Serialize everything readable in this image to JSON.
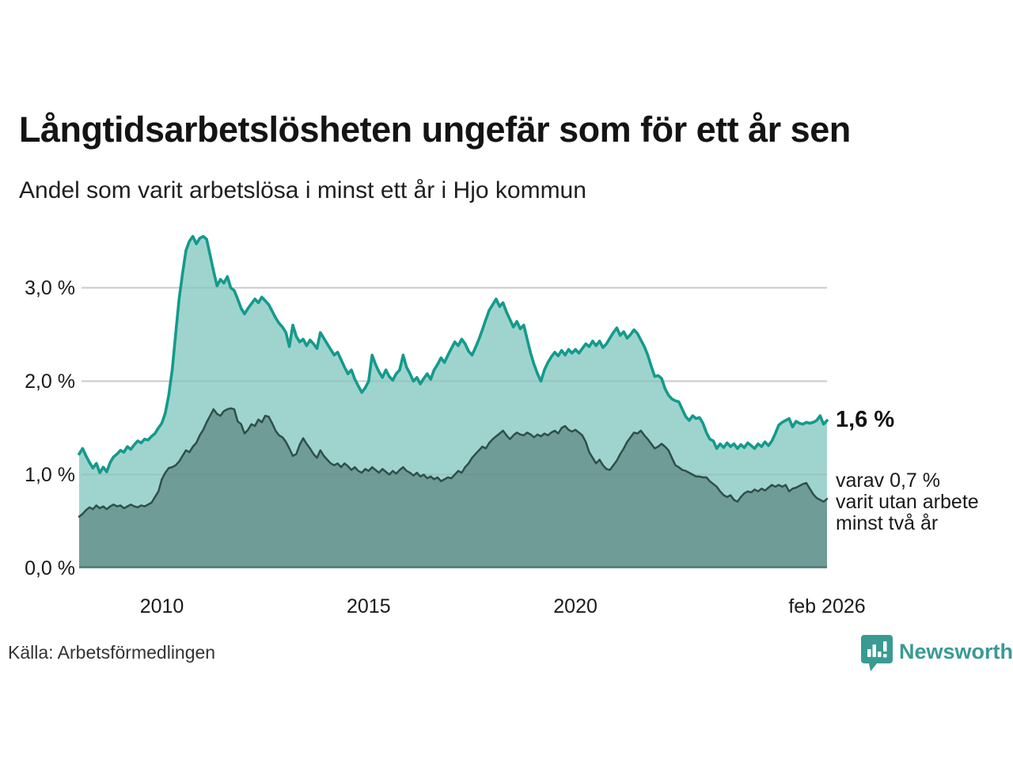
{
  "header": {
    "title": "Långtidsarbetslösheten ungefär som för ett år sen",
    "subtitle": "Andel som varit arbetslösa i minst ett år i Hjo kommun"
  },
  "chart_data": {
    "type": "area",
    "title": "Långtidsarbetslösheten ungefär som för ett år sen",
    "subtitle": "Andel som varit arbetslösa i minst ett år i Hjo kommun",
    "unit": "%",
    "x_start": "2008-01",
    "x_end": "2026-02",
    "x_ticks": [
      {
        "label": "2010",
        "month_index": 24
      },
      {
        "label": "2015",
        "month_index": 84
      },
      {
        "label": "2020",
        "month_index": 144
      },
      {
        "label": "feb 2026",
        "month_index": 217
      }
    ],
    "y_ticks": [
      {
        "label": "0,0 %",
        "value": 0
      },
      {
        "label": "1,0 %",
        "value": 1
      },
      {
        "label": "2,0 %",
        "value": 2
      },
      {
        "label": "3,0 %",
        "value": 3
      }
    ],
    "ylim": [
      0,
      3.6
    ],
    "grid": "horizontal",
    "legend_position": "none",
    "colors": {
      "line_one_year": "#149a8c",
      "fill_one_year": "#9fd4ce",
      "line_two_years": "#2f4f4a",
      "fill_two_years": "#6f9c97",
      "gridline": "#dcdcdc",
      "axis_line": "#4f7672"
    },
    "series": [
      {
        "name": "Andel arbetslösa minst ett år",
        "latest_label": "1,6 %",
        "values": [
          1.22,
          1.28,
          1.2,
          1.13,
          1.07,
          1.12,
          1.02,
          1.08,
          1.03,
          1.13,
          1.19,
          1.22,
          1.26,
          1.24,
          1.3,
          1.27,
          1.32,
          1.36,
          1.34,
          1.38,
          1.37,
          1.41,
          1.44,
          1.5,
          1.55,
          1.66,
          1.85,
          2.12,
          2.5,
          2.88,
          3.15,
          3.4,
          3.5,
          3.55,
          3.47,
          3.53,
          3.55,
          3.52,
          3.35,
          3.18,
          3.02,
          3.09,
          3.05,
          3.12,
          3.0,
          2.97,
          2.88,
          2.78,
          2.72,
          2.78,
          2.83,
          2.88,
          2.84,
          2.9,
          2.86,
          2.82,
          2.75,
          2.68,
          2.62,
          2.58,
          2.52,
          2.37,
          2.6,
          2.48,
          2.42,
          2.45,
          2.38,
          2.44,
          2.4,
          2.35,
          2.52,
          2.46,
          2.4,
          2.34,
          2.28,
          2.31,
          2.23,
          2.15,
          2.08,
          2.12,
          2.02,
          1.95,
          1.88,
          1.93,
          2.0,
          2.28,
          2.18,
          2.1,
          2.04,
          2.12,
          2.05,
          2.01,
          2.08,
          2.12,
          2.28,
          2.15,
          2.08,
          2.0,
          2.04,
          1.97,
          2.03,
          2.08,
          2.02,
          2.12,
          2.18,
          2.25,
          2.2,
          2.28,
          2.35,
          2.42,
          2.38,
          2.45,
          2.4,
          2.32,
          2.28,
          2.36,
          2.45,
          2.55,
          2.66,
          2.76,
          2.82,
          2.88,
          2.8,
          2.84,
          2.74,
          2.66,
          2.58,
          2.64,
          2.56,
          2.6,
          2.45,
          2.3,
          2.18,
          2.08,
          2.0,
          2.12,
          2.2,
          2.26,
          2.31,
          2.27,
          2.33,
          2.28,
          2.34,
          2.3,
          2.34,
          2.3,
          2.35,
          2.4,
          2.37,
          2.43,
          2.38,
          2.43,
          2.36,
          2.4,
          2.46,
          2.52,
          2.57,
          2.49,
          2.53,
          2.46,
          2.5,
          2.55,
          2.51,
          2.44,
          2.37,
          2.28,
          2.16,
          2.05,
          2.06,
          2.03,
          1.92,
          1.85,
          1.81,
          1.79,
          1.78,
          1.7,
          1.62,
          1.58,
          1.63,
          1.6,
          1.61,
          1.55,
          1.45,
          1.38,
          1.36,
          1.28,
          1.33,
          1.29,
          1.34,
          1.3,
          1.33,
          1.28,
          1.32,
          1.29,
          1.34,
          1.31,
          1.28,
          1.33,
          1.3,
          1.35,
          1.31,
          1.36,
          1.44,
          1.53,
          1.56,
          1.58,
          1.6,
          1.51,
          1.57,
          1.55,
          1.54,
          1.56,
          1.55,
          1.56,
          1.58,
          1.63,
          1.54,
          1.58
        ]
      },
      {
        "name": "Andel arbetslösa minst två år",
        "latest_label": "0,7 %",
        "values": [
          0.55,
          0.58,
          0.62,
          0.65,
          0.63,
          0.67,
          0.64,
          0.66,
          0.63,
          0.66,
          0.68,
          0.66,
          0.67,
          0.64,
          0.66,
          0.68,
          0.66,
          0.65,
          0.67,
          0.66,
          0.68,
          0.7,
          0.76,
          0.82,
          0.95,
          1.02,
          1.07,
          1.08,
          1.1,
          1.14,
          1.2,
          1.26,
          1.24,
          1.3,
          1.34,
          1.42,
          1.48,
          1.56,
          1.63,
          1.7,
          1.65,
          1.63,
          1.68,
          1.7,
          1.71,
          1.7,
          1.57,
          1.54,
          1.44,
          1.48,
          1.54,
          1.52,
          1.59,
          1.56,
          1.63,
          1.62,
          1.55,
          1.47,
          1.42,
          1.4,
          1.35,
          1.28,
          1.2,
          1.22,
          1.32,
          1.39,
          1.33,
          1.28,
          1.22,
          1.18,
          1.26,
          1.2,
          1.16,
          1.12,
          1.1,
          1.12,
          1.08,
          1.12,
          1.09,
          1.05,
          1.08,
          1.04,
          1.02,
          1.06,
          1.04,
          1.08,
          1.05,
          1.02,
          1.06,
          1.03,
          1.0,
          1.04,
          1.01,
          1.05,
          1.08,
          1.04,
          1.02,
          0.99,
          1.02,
          0.98,
          1.0,
          0.96,
          0.98,
          0.95,
          0.97,
          0.93,
          0.95,
          0.97,
          0.96,
          1.0,
          1.04,
          1.02,
          1.08,
          1.12,
          1.18,
          1.22,
          1.26,
          1.3,
          1.28,
          1.34,
          1.38,
          1.41,
          1.44,
          1.47,
          1.42,
          1.38,
          1.42,
          1.45,
          1.43,
          1.42,
          1.45,
          1.43,
          1.4,
          1.43,
          1.41,
          1.44,
          1.42,
          1.45,
          1.47,
          1.44,
          1.5,
          1.52,
          1.48,
          1.46,
          1.48,
          1.45,
          1.42,
          1.35,
          1.24,
          1.18,
          1.12,
          1.16,
          1.1,
          1.06,
          1.05,
          1.1,
          1.15,
          1.22,
          1.28,
          1.35,
          1.4,
          1.45,
          1.44,
          1.47,
          1.42,
          1.38,
          1.33,
          1.28,
          1.3,
          1.33,
          1.3,
          1.26,
          1.18,
          1.1,
          1.08,
          1.05,
          1.04,
          1.02,
          1.0,
          0.98,
          0.98,
          0.97,
          0.97,
          0.93,
          0.9,
          0.87,
          0.82,
          0.78,
          0.76,
          0.78,
          0.73,
          0.71,
          0.76,
          0.8,
          0.82,
          0.81,
          0.84,
          0.82,
          0.85,
          0.83,
          0.86,
          0.89,
          0.87,
          0.89,
          0.87,
          0.89,
          0.82,
          0.85,
          0.86,
          0.88,
          0.9,
          0.91,
          0.85,
          0.79,
          0.75,
          0.73,
          0.71,
          0.74
        ]
      }
    ],
    "annotations": {
      "latest_total": "1,6 %",
      "latest_two_years_block": "varav 0,7 %\nvarit utan arbete\nminst två år"
    }
  },
  "footer": {
    "source": "Källa: Arbetsförmedlingen",
    "brand": "Newsworthy"
  }
}
